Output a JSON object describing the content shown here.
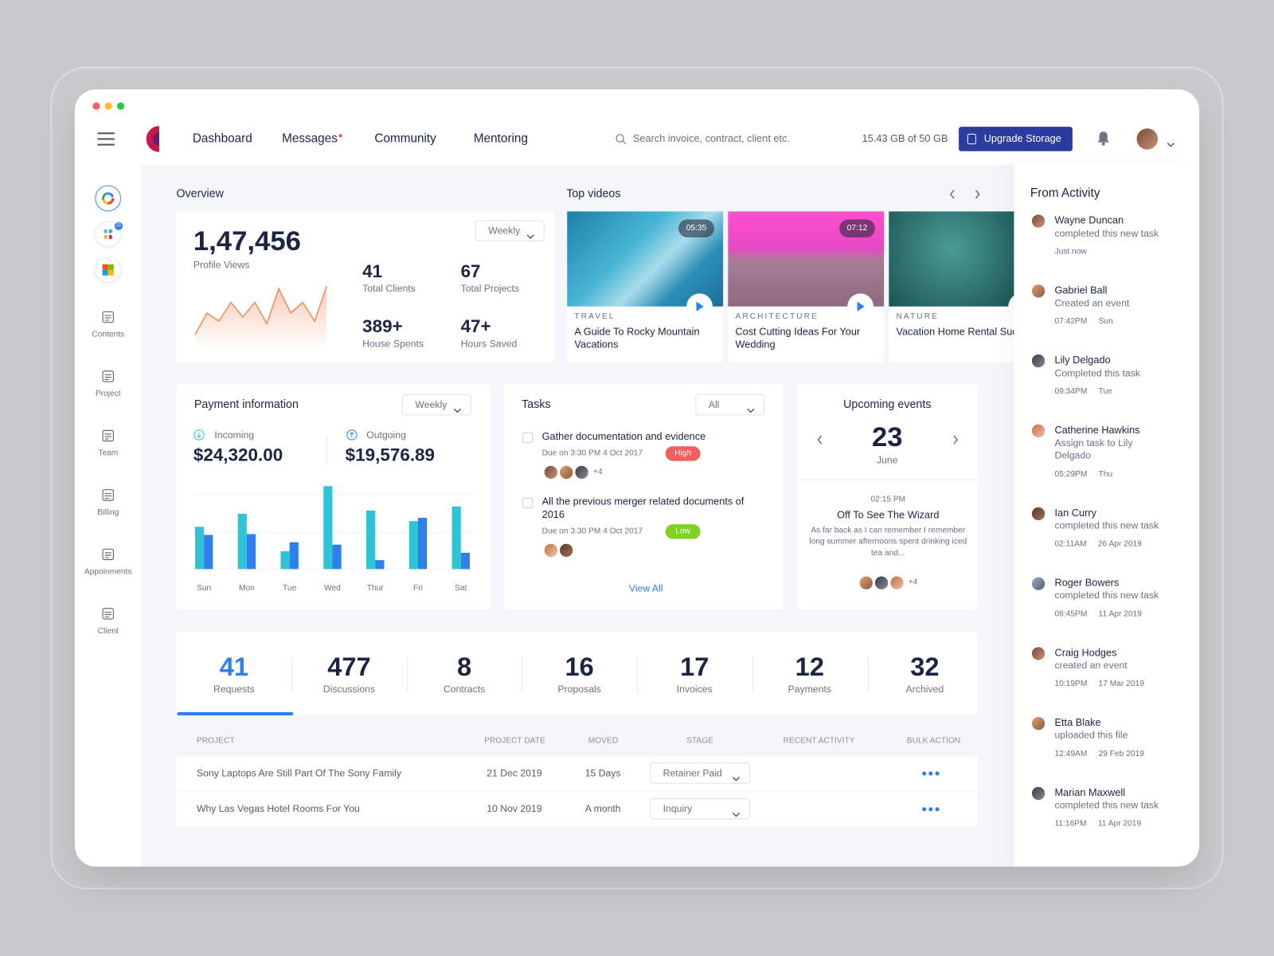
{
  "nav": {
    "items": [
      "Dashboard",
      "Messages",
      "Community",
      "Mentoring"
    ],
    "search": "Search invoice, contract, client etc.",
    "storage": "15.43 GB of 50 GB",
    "upgrade": "Upgrade Storage"
  },
  "sidebar": {
    "badge": "21",
    "items": [
      "Contents",
      "Project",
      "Team",
      "Billing",
      "Appoinments",
      "Client"
    ]
  },
  "overview": {
    "title": "Overview",
    "filter": "Weekly",
    "total": "1,47,456",
    "total_label": "Profile Views",
    "stats": [
      {
        "value": "41",
        "label": "Total Clients"
      },
      {
        "value": "67",
        "label": "Total Projects"
      },
      {
        "value": "389+",
        "label": "House Spents"
      },
      {
        "value": "47+",
        "label": "Hours Saved"
      }
    ],
    "sparkline": {
      "type": "line",
      "color": "#f08a5d",
      "ylim": [
        0,
        90
      ],
      "values": [
        18,
        45,
        35,
        58,
        40,
        58,
        32,
        75,
        45,
        58,
        35,
        78
      ]
    }
  },
  "videos": {
    "title": "Top videos",
    "items": [
      {
        "duration": "05:35",
        "category": "TRAVEL",
        "title": "A Guide To Rocky Mountain Vacations"
      },
      {
        "duration": "07:12",
        "category": "ARCHITECTURE",
        "title": "Cost Cutting Ideas For Your Wedding"
      },
      {
        "category": "NATURE",
        "title": "Vacation Home Rental Success"
      }
    ]
  },
  "payment": {
    "title": "Payment information",
    "filter": "Weekly",
    "incoming_label": "Incoming",
    "incoming": "$24,320.00",
    "outgoing_label": "Outgoing",
    "outgoing": "$19,576.89",
    "chart": {
      "type": "bar",
      "categories": [
        "Sun",
        "Mon",
        "Tue",
        "Wed",
        "Thur",
        "Fri",
        "Sat"
      ],
      "ylim": [
        0,
        110
      ],
      "series": [
        {
          "color": "#2ec4d6",
          "values": [
            52,
            68,
            22,
            102,
            72,
            59,
            77
          ]
        },
        {
          "color": "#2f80ed",
          "values": [
            42,
            43,
            33,
            30,
            11,
            63,
            20
          ]
        }
      ]
    }
  },
  "tasks": {
    "title": "Tasks",
    "filter": "All",
    "view_all": "View All",
    "items": [
      {
        "title": "Gather documentation and evidence",
        "due": "Due on 3:30 PM 4 Oct 2017",
        "priority": "High",
        "more": "+4"
      },
      {
        "title": "All the previous merger related documents of 2016",
        "due": "Due on 3:30 PM 4 Oct 2017",
        "priority": "Low"
      }
    ]
  },
  "events": {
    "title": "Upcoming events",
    "day": "23",
    "month": "June",
    "time": "02:15 PM",
    "name": "Off To See The Wizard",
    "description": "As far back as I can remember I remember long summer afternoons spent drinking iced tea and...",
    "more": "+4"
  },
  "counters": [
    {
      "value": 41,
      "label": "Requests"
    },
    {
      "value": 477,
      "label": "Discussions"
    },
    {
      "value": 8,
      "label": "Contracts"
    },
    {
      "value": 16,
      "label": "Proposals"
    },
    {
      "value": 17,
      "label": "Invoices"
    },
    {
      "value": 12,
      "label": "Payments"
    },
    {
      "value": 32,
      "label": "Archived"
    }
  ],
  "table": {
    "headers": [
      "PROJECT",
      "PROJECT DATE",
      "MOVED",
      "STAGE",
      "RECENT ACTIVITY",
      "BULK ACTION"
    ],
    "rows": [
      [
        "Sony Laptops Are Still Part  Of The Sony Family",
        "21 Dec 2019",
        "15 Days",
        "Retainer Paid"
      ],
      [
        "Why Las Vegas Hotel Rooms For You",
        "10 Nov 2019",
        "A month",
        "Inquiry"
      ]
    ]
  },
  "activity": {
    "title": "From Activity",
    "items": [
      {
        "name": "Wayne Duncan",
        "action": "completed this new task",
        "time": "Just now"
      },
      {
        "name": "Gabriel Ball",
        "action": "Created an event",
        "time": "07:42PM",
        "day": "Sun"
      },
      {
        "name": "Lily Delgado",
        "action": "Completed this task",
        "time": "09:34PM",
        "day": "Tue"
      },
      {
        "name": "Catherine Hawkins",
        "action": "Assign task to Lily Delgado",
        "time": "05:29PM",
        "day": "Thu"
      },
      {
        "name": "Ian Curry",
        "action": "completed this new task",
        "time": "02:11AM",
        "day": "26 Apr 2019"
      },
      {
        "name": "Roger Bowers",
        "action": "completed this new task",
        "time": "08:45PM",
        "day": "11 Apr 2019"
      },
      {
        "name": "Craig Hodges",
        "action": "created an event",
        "time": "10:19PM",
        "day": "17 Mar 2019"
      },
      {
        "name": "Etta Blake",
        "action": "uploaded this file",
        "time": "12:49AM",
        "day": "29 Feb 2019"
      },
      {
        "name": "Marian Maxwell",
        "action": "completed this new task",
        "time": "11:16PM",
        "day": "11 Apr 2019"
      }
    ]
  }
}
